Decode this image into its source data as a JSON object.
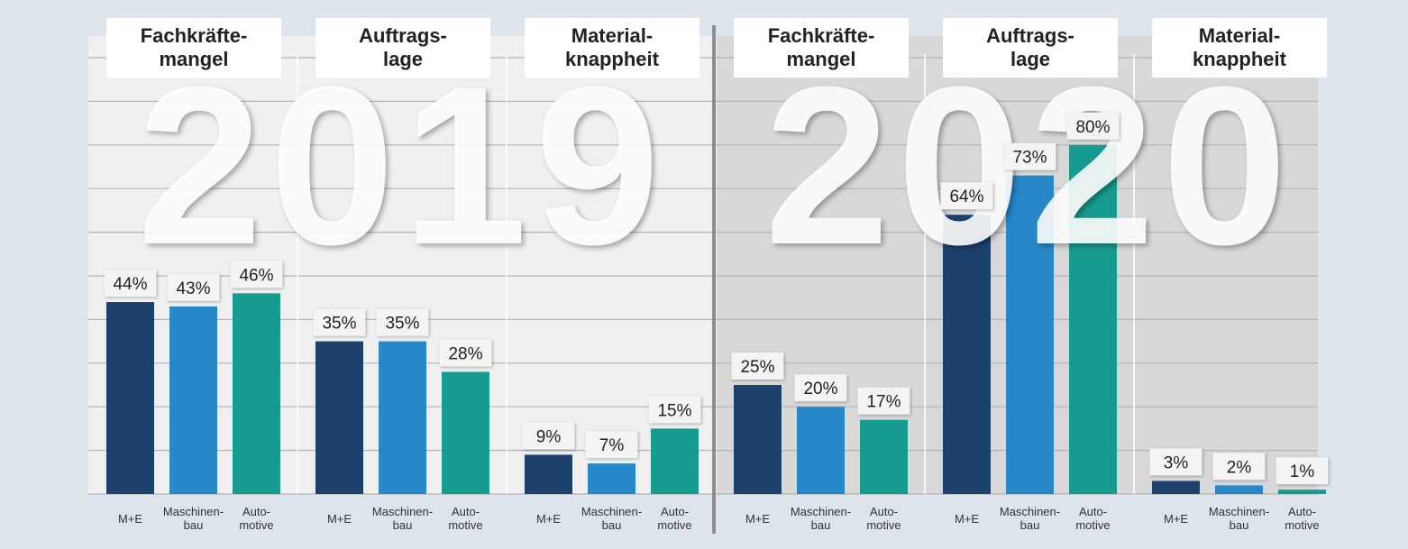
{
  "chart_data": {
    "type": "bar",
    "categories": [
      "M+E",
      "Maschinen-\nbau",
      "Auto-\nmotive"
    ],
    "colors": [
      "#1c416d",
      "#2787c8",
      "#169b8e"
    ],
    "ylim": [
      0,
      100
    ],
    "yticks": [
      0,
      10,
      20,
      30,
      40,
      50,
      60,
      70,
      80,
      90,
      100
    ],
    "grid": true,
    "panels": [
      {
        "year": "2019",
        "groups": [
          {
            "title": "Fachkräfte-\nmangel",
            "values": [
              44,
              43,
              46
            ],
            "value_labels": [
              "44%",
              "43%",
              "46%"
            ]
          },
          {
            "title": "Auftrags-\nlage",
            "values": [
              35,
              35,
              28
            ],
            "value_labels": [
              "35%",
              "35%",
              "28%"
            ]
          },
          {
            "title": "Material-\nknappheit",
            "values": [
              9,
              7,
              15
            ],
            "value_labels": [
              "9%",
              "7%",
              "15%"
            ]
          }
        ]
      },
      {
        "year": "2020",
        "groups": [
          {
            "title": "Fachkräfte-\nmangel",
            "values": [
              25,
              20,
              17
            ],
            "value_labels": [
              "25%",
              "20%",
              "17%"
            ]
          },
          {
            "title": "Auftrags-\nlage",
            "values": [
              64,
              73,
              80
            ],
            "value_labels": [
              "64%",
              "73%",
              "80%"
            ]
          },
          {
            "title": "Material-\nknappheit",
            "values": [
              3,
              2,
              1
            ],
            "value_labels": [
              "3%",
              "2%",
              "1%"
            ]
          }
        ]
      }
    ]
  }
}
